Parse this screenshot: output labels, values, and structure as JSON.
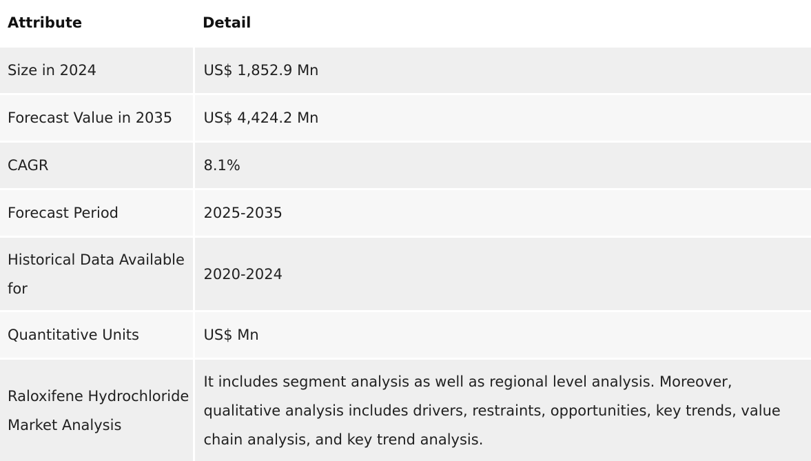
{
  "table": {
    "headers": {
      "attribute": "Attribute",
      "detail": "Detail"
    },
    "rows": [
      {
        "attribute": "Size in 2024",
        "detail": "US$ 1,852.9 Mn"
      },
      {
        "attribute": "Forecast Value in 2035",
        "detail": "US$ 4,424.2 Mn"
      },
      {
        "attribute": "CAGR",
        "detail": "8.1%"
      },
      {
        "attribute": "Forecast Period",
        "detail": "2025-2035"
      },
      {
        "attribute": "Historical Data Available for",
        "detail": "2020-2024"
      },
      {
        "attribute": "Quantitative Units",
        "detail": "US$ Mn"
      },
      {
        "attribute": "Raloxifene Hydrochloride Market Analysis",
        "detail": "It includes segment analysis as well as regional level analysis. Moreover, qualitative analysis includes drivers, restraints, opportunities, key trends, value chain analysis, and key trend analysis."
      }
    ]
  }
}
